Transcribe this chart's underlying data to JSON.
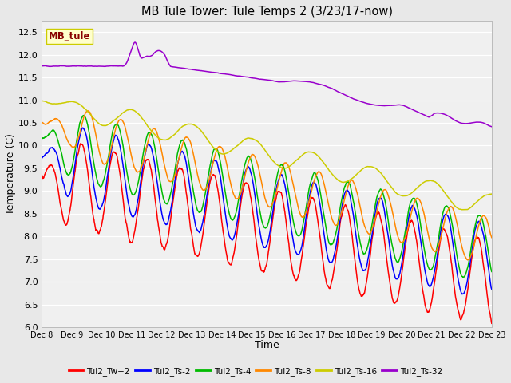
{
  "title": "MB Tule Tower: Tule Temps 2 (3/23/17-now)",
  "xlabel": "Time",
  "ylabel": "Temperature (C)",
  "ylim": [
    6.0,
    12.75
  ],
  "yticks": [
    6.0,
    6.5,
    7.0,
    7.5,
    8.0,
    8.5,
    9.0,
    9.5,
    10.0,
    10.5,
    11.0,
    11.5,
    12.0,
    12.5
  ],
  "bg_color": "#e8e8e8",
  "plot_bg_color": "#f0f0f0",
  "grid_color": "#ffffff",
  "legend_box_facecolor": "#ffffcc",
  "legend_box_edgecolor": "#cccc00",
  "legend_label_color": "#880000",
  "series_colors": {
    "Tul2_Tw+2": "#ff0000",
    "Tul2_Ts-2": "#0000ff",
    "Tul2_Ts-4": "#00bb00",
    "Tul2_Ts-8": "#ff8800",
    "Tul2_Ts-16": "#cccc00",
    "Tul2_Ts-32": "#9900cc"
  },
  "figsize": [
    6.4,
    4.8
  ],
  "dpi": 100
}
